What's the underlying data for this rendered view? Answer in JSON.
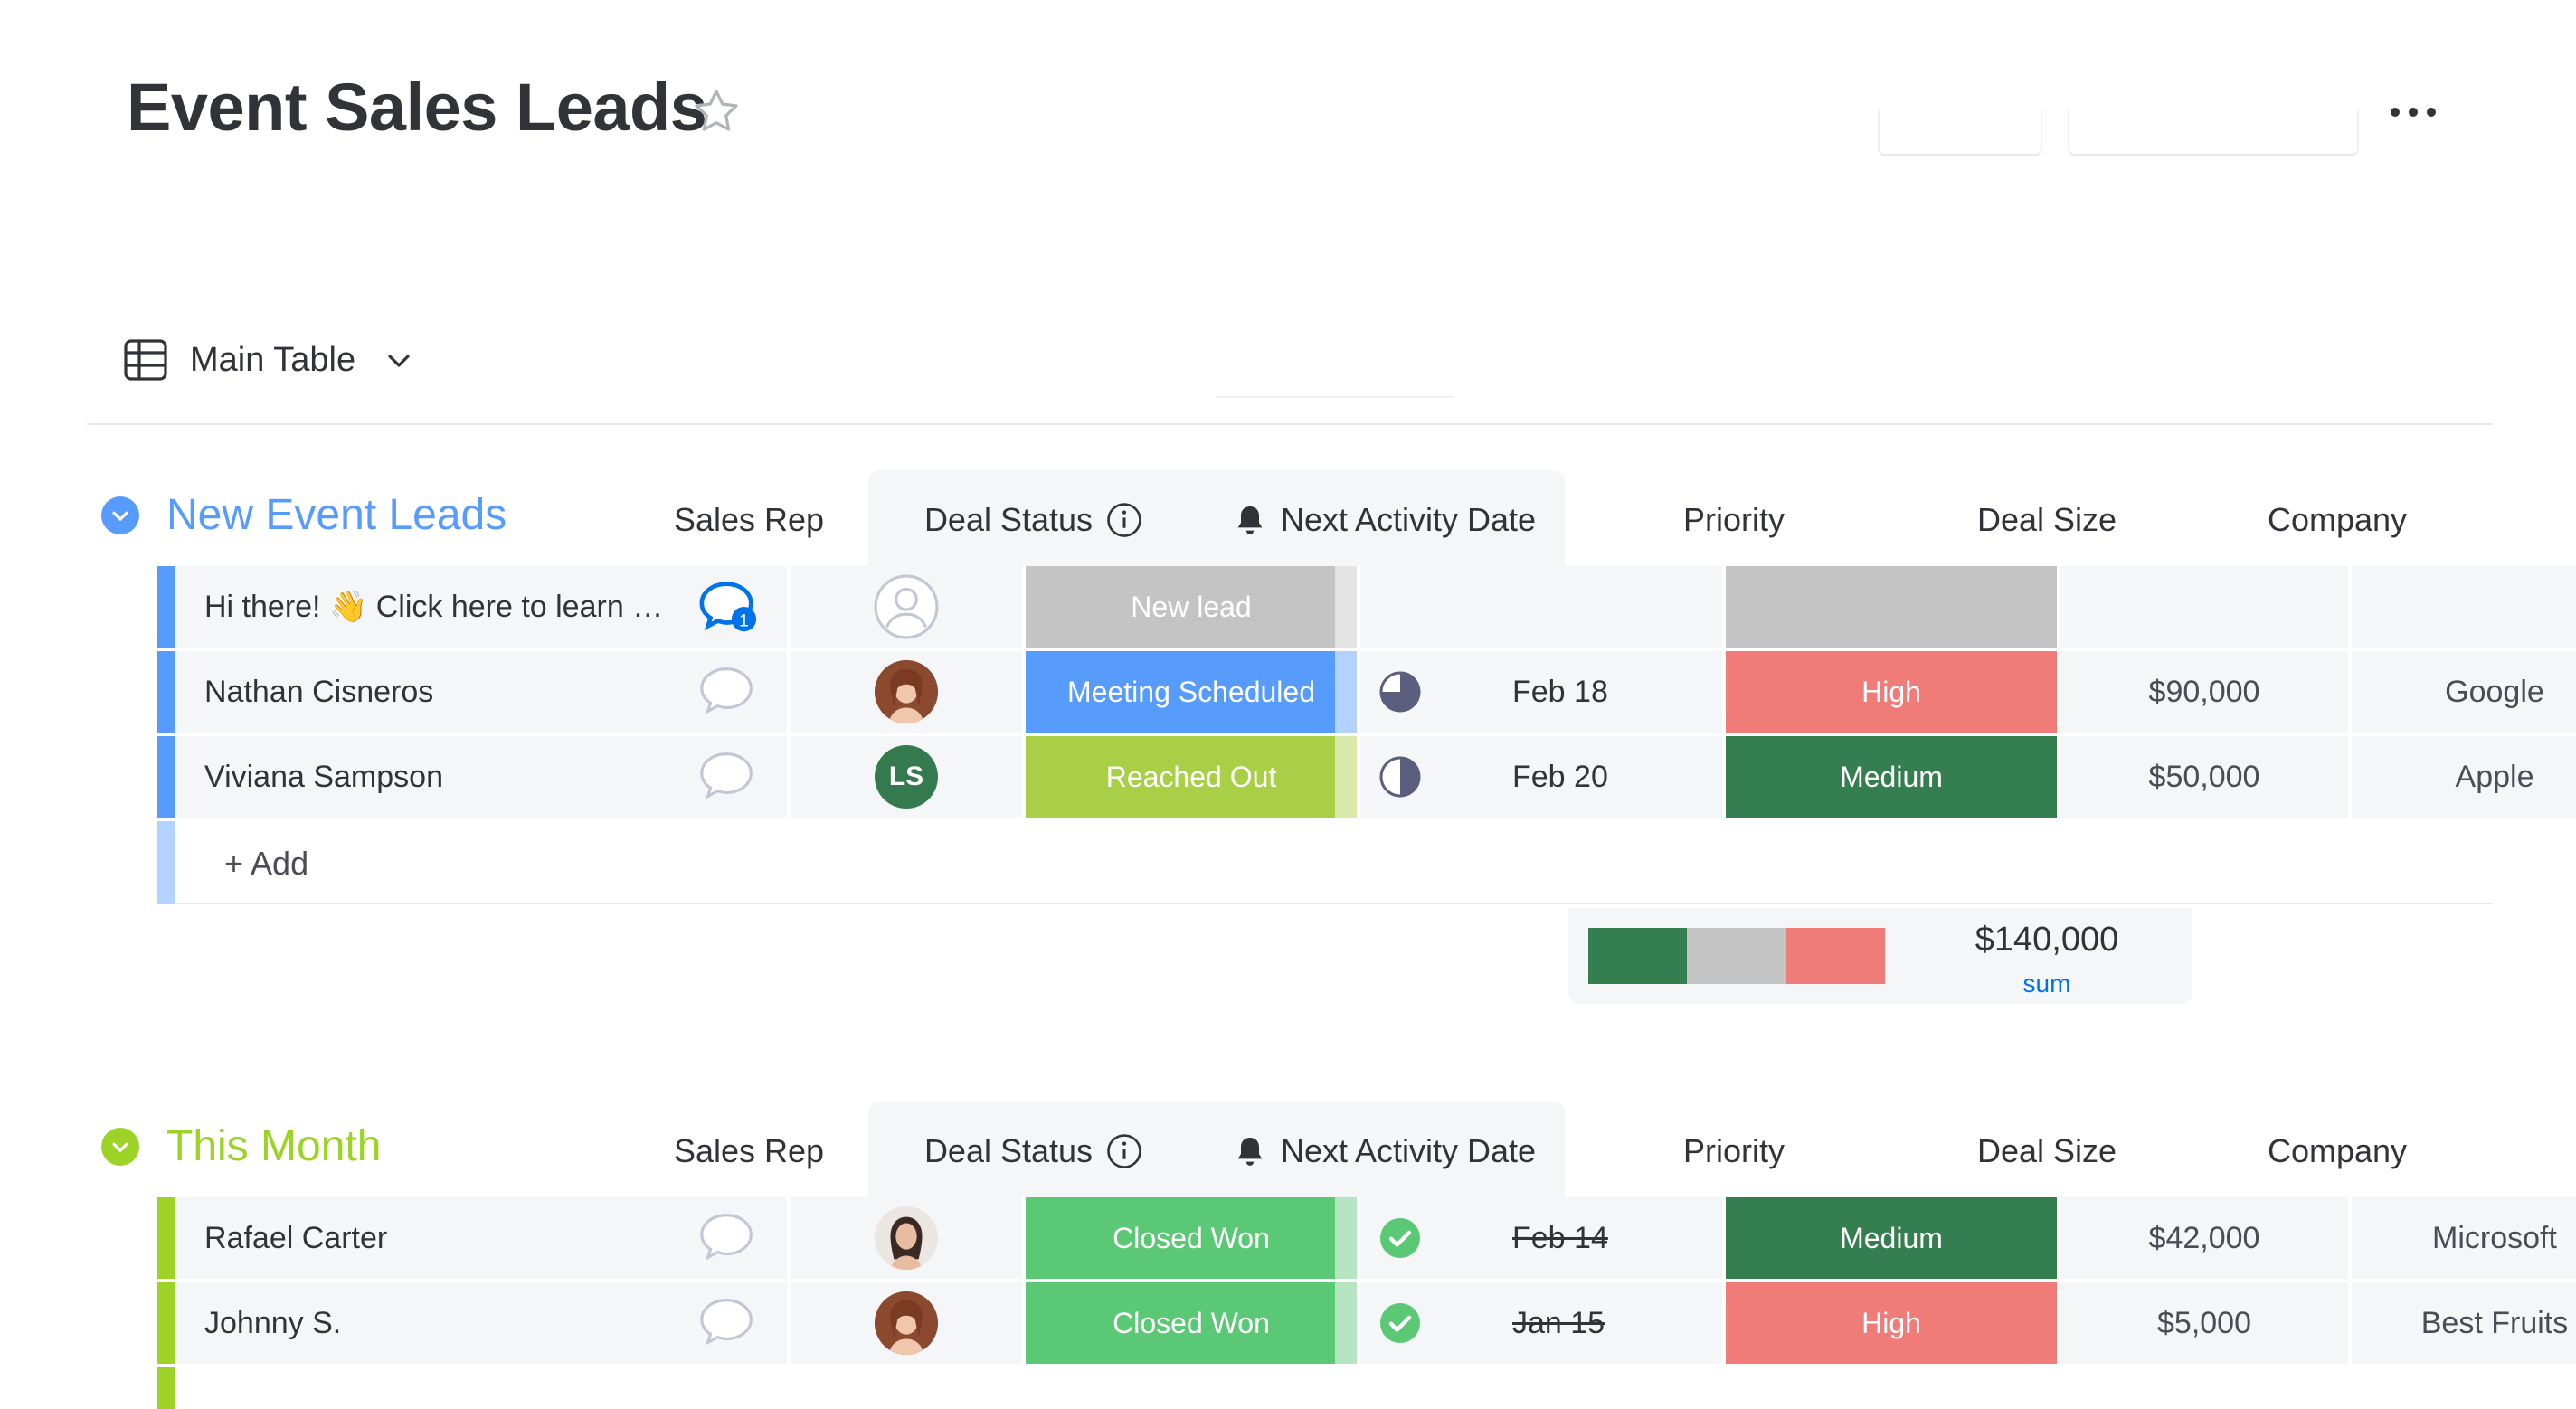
{
  "board": {
    "title": "Event Sales Leads"
  },
  "view": {
    "label": "Main Table"
  },
  "columns": {
    "sales_rep": "Sales Rep",
    "deal_status": "Deal Status",
    "next_activity": "Next Activity Date",
    "priority": "Priority",
    "deal_size": "Deal Size",
    "company": "Company"
  },
  "groups": [
    {
      "title": "New Event Leads",
      "color": "#579bfc",
      "rows": [
        {
          "name": "Hi there! 👋 Click here to learn how to use this board",
          "comments": "1",
          "rep_avatar": "empty",
          "status": "New lead",
          "status_color": "#c4c4c4",
          "date": "",
          "priority": "",
          "priority_color": "#c4c4c4",
          "deal_size": "",
          "company": ""
        },
        {
          "name": "Nathan Cisneros",
          "comments": "",
          "rep_avatar": "photo",
          "status": "Meeting Scheduled",
          "status_color": "#579bfc",
          "date_icon": "pie-three-quarter-icon",
          "date": "Feb 18",
          "priority": "High",
          "priority_color": "#f07c7a",
          "deal_size": "$90,000",
          "company": "Google"
        },
        {
          "name": "Viviana Sampson",
          "comments": "",
          "rep_avatar": "initials",
          "rep_initials": "LS",
          "status": "Reached Out",
          "status_color": "#a8cf45",
          "date_icon": "half-circle-icon",
          "date": "Feb 20",
          "priority": "Medium",
          "priority_color": "#357e50",
          "deal_size": "$50,000",
          "company": "Apple"
        }
      ],
      "add_label": "+ Add",
      "summary": {
        "priority_distribution": [
          {
            "label": "Medium",
            "fraction": 0.333,
            "color": "#357e50"
          },
          {
            "label": "Empty",
            "fraction": 0.334,
            "color": "#c4c4c4"
          },
          {
            "label": "High",
            "fraction": 0.333,
            "color": "#f07c7a"
          }
        ],
        "deal_size_sum": "$140,000",
        "deal_size_label": "sum"
      }
    },
    {
      "title": "This Month",
      "color": "#9cd326",
      "rows": [
        {
          "name": "Rafael Carter",
          "comments": "",
          "rep_avatar": "photo",
          "status": "Closed Won",
          "status_color": "#5bc876",
          "date_icon": "check-circle-icon",
          "date": "Feb 14",
          "priority": "Medium",
          "priority_color": "#357e50",
          "deal_size": "$42,000",
          "company": "Microsoft"
        },
        {
          "name": "Johnny S.",
          "comments": "",
          "rep_avatar": "photo",
          "status": "Closed Won",
          "status_color": "#5bc876",
          "date_icon": "check-circle-icon",
          "date": "Jan 15",
          "priority": "High",
          "priority_color": "#f07c7a",
          "deal_size": "$5,000",
          "company": "Best Fruits"
        }
      ]
    }
  ]
}
